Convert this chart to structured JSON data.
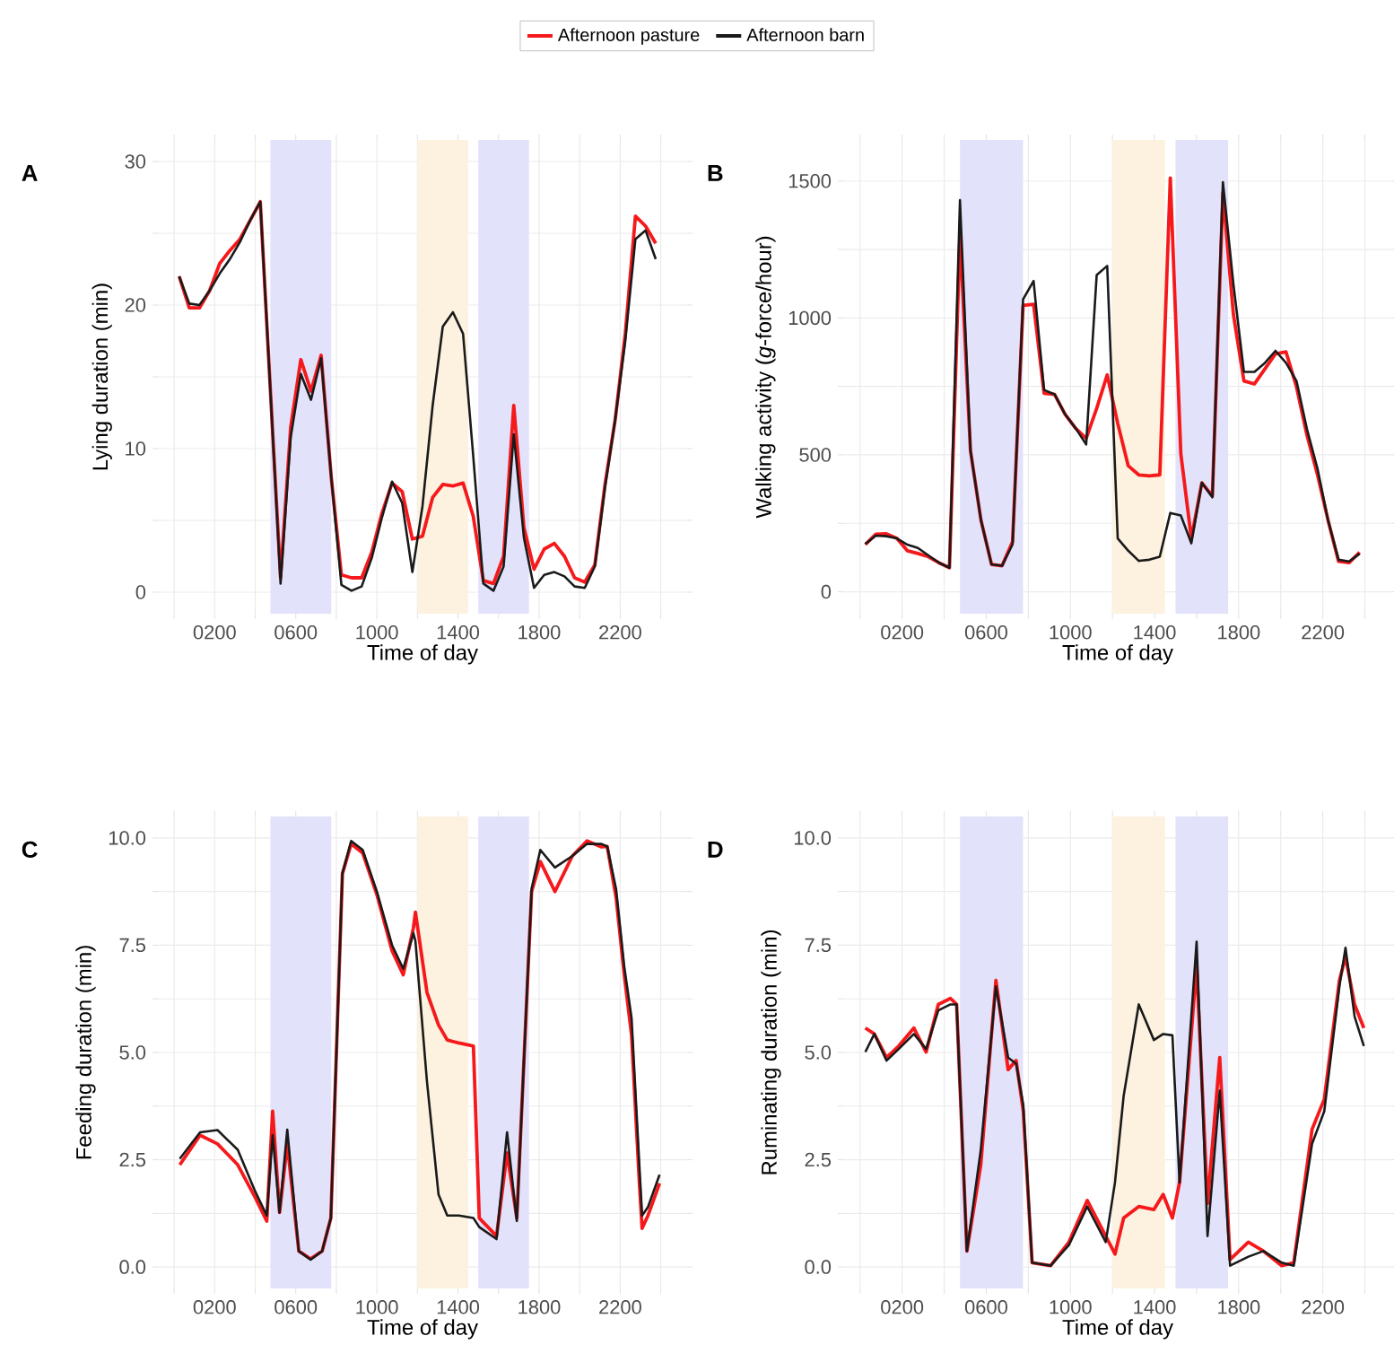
{
  "chart_data": [
    {
      "type": "line",
      "title": "A",
      "xlabel": "Time of day",
      "ylabel": "Lying duration (min)",
      "legend": "top",
      "grid": true,
      "x": [
        25,
        75,
        125,
        175,
        225,
        275,
        325,
        375,
        425,
        475,
        525,
        575,
        625,
        675,
        725,
        775,
        825,
        875,
        925,
        975,
        1025,
        1075,
        1125,
        1175,
        1225,
        1275,
        1325,
        1375,
        1425,
        1475,
        1525,
        1575,
        1625,
        1675,
        1725,
        1775,
        1825,
        1875,
        1925,
        1975,
        2025,
        2075,
        2125,
        2175,
        2225,
        2275,
        2325,
        2375
      ],
      "series": [
        {
          "name": "Afternoon pasture",
          "color": "#f5191c",
          "values": [
            22,
            19.8,
            19.8,
            21,
            22.9,
            23.8,
            24.6,
            25.9,
            27.2,
            14,
            1.0,
            11.5,
            16.2,
            14,
            16.5,
            8,
            1.2,
            1.0,
            1.0,
            2.8,
            5.5,
            7.6,
            7.0,
            3.7,
            3.9,
            6.6,
            7.5,
            7.4,
            7.6,
            5.3,
            0.8,
            0.6,
            2.5,
            13,
            4.5,
            1.6,
            3.0,
            3.4,
            2.5,
            1.0,
            0.7,
            1.9,
            7.5,
            12,
            18,
            26.2,
            25.5,
            24.3
          ]
        },
        {
          "name": "Afternoon barn",
          "color": "#1a1a1a",
          "values": [
            22,
            20.1,
            20,
            21,
            22.2,
            23.2,
            24.4,
            25.9,
            27.2,
            14,
            0.6,
            10.8,
            15.2,
            13.4,
            16.3,
            8,
            0.5,
            0.1,
            0.4,
            2.4,
            5.2,
            7.7,
            6.2,
            1.4,
            6.0,
            13,
            18.5,
            19.5,
            18,
            9.5,
            0.6,
            0.1,
            1.8,
            11,
            3.8,
            0.3,
            1.2,
            1.4,
            1.1,
            0.4,
            0.3,
            1.8,
            7.3,
            12,
            17.5,
            24.6,
            25.2,
            23.2
          ]
        }
      ],
      "xlim": [
        -80,
        2530
      ],
      "ylim": [
        -1.5,
        31.5
      ],
      "xticks": [
        {
          "value": 0,
          "label": null
        },
        {
          "value": 200,
          "label": "0200"
        },
        {
          "value": 400,
          "label": null
        },
        {
          "value": 600,
          "label": "0600"
        },
        {
          "value": 800,
          "label": null
        },
        1000,
        {
          "value": 1200,
          "label": null
        },
        1400,
        {
          "value": 1600,
          "label": null
        },
        1800,
        {
          "value": 2000,
          "label": null
        },
        2200,
        {
          "value": 2400,
          "label": null
        }
      ],
      "yticks": [
        0,
        {
          "value": 5,
          "label": null
        },
        10,
        {
          "value": 15,
          "label": null
        },
        20,
        {
          "value": 25,
          "label": null
        },
        30
      ],
      "bands": [
        {
          "axis": "x",
          "from": 475,
          "to": 775,
          "color": "#e2e2fb"
        },
        {
          "axis": "x",
          "from": 1200,
          "to": 1450,
          "color": "#fcf2df"
        },
        {
          "axis": "x",
          "from": 1500,
          "to": 1750,
          "color": "#e2e2fb"
        }
      ]
    },
    {
      "type": "line",
      "title": "B",
      "xlabel": "Time of day",
      "ylabel": "Walking activity (*g*-force/hour)",
      "grid": true,
      "x": [
        25,
        75,
        125,
        175,
        225,
        275,
        325,
        375,
        425,
        475,
        525,
        575,
        625,
        675,
        725,
        775,
        825,
        875,
        925,
        975,
        1025,
        1075,
        1125,
        1175,
        1225,
        1275,
        1325,
        1375,
        1425,
        1475,
        1525,
        1575,
        1625,
        1675,
        1725,
        1775,
        1825,
        1875,
        1925,
        1975,
        2025,
        2075,
        2125,
        2175,
        2225,
        2275,
        2325,
        2375
      ],
      "series": [
        {
          "color": "#f5191c",
          "values": [
            173,
            210,
            212,
            195,
            150,
            140,
            128,
            106,
            88,
            1300,
            515,
            261,
            100,
            95,
            183,
            1046,
            1050,
            725,
            721,
            648,
            597,
            560,
            670,
            792,
            615,
            460,
            427,
            423,
            427,
            1511,
            504,
            195,
            398,
            350,
            1456,
            1013,
            770,
            759,
            814,
            869,
            876,
            748,
            571,
            427,
            261,
            111,
            106,
            144
          ]
        },
        {
          "color": "#1a1a1a",
          "values": [
            175,
            205,
            203,
            195,
            172,
            160,
            133,
            106,
            88,
            1430,
            515,
            261,
            100,
            95,
            173,
            1068,
            1135,
            737,
            721,
            648,
            597,
            538,
            1157,
            1190,
            195,
            150,
            113,
            117,
            128,
            288,
            279,
            177,
            398,
            345,
            1496,
            1124,
            803,
            803,
            836,
            880,
            836,
            770,
            593,
            449,
            261,
            117,
            111,
            139
          ]
        }
      ],
      "xlim": [
        -80,
        2530
      ],
      "ylim": [
        -80,
        1650
      ],
      "xticks": [
        {
          "value": 0,
          "label": null
        },
        {
          "value": 200,
          "label": "0200"
        },
        {
          "value": 400,
          "label": null
        },
        {
          "value": 600,
          "label": "0600"
        },
        {
          "value": 800,
          "label": null
        },
        1000,
        {
          "value": 1200,
          "label": null
        },
        1400,
        {
          "value": 1600,
          "label": null
        },
        1800,
        {
          "value": 2000,
          "label": null
        },
        2200,
        {
          "value": 2400,
          "label": null
        }
      ],
      "yticks": [
        0,
        {
          "value": 250,
          "label": null
        },
        500,
        {
          "value": 750,
          "label": null
        },
        1000,
        {
          "value": 1250,
          "label": null
        },
        1500
      ],
      "bands": [
        {
          "axis": "x",
          "from": 475,
          "to": 775,
          "color": "#e2e2fb"
        },
        {
          "axis": "x",
          "from": 1200,
          "to": 1450,
          "color": "#fcf2df"
        },
        {
          "axis": "x",
          "from": 1500,
          "to": 1750,
          "color": "#e2e2fb"
        }
      ]
    },
    {
      "type": "line",
      "title": "C",
      "xlabel": "Time of day",
      "ylabel": "Feeding duration (min)",
      "grid": true,
      "x": [
        28,
        128,
        214,
        314,
        400,
        457,
        486,
        520,
        558,
        615,
        673,
        730,
        773,
        830,
        873,
        930,
        1000,
        1075,
        1130,
        1180,
        1190,
        1247,
        1304,
        1347,
        1404,
        1476,
        1505,
        1590,
        1642,
        1690,
        1763,
        1806,
        1878,
        1964,
        2036,
        2108,
        2136,
        2180,
        2220,
        2256,
        2294,
        2308,
        2337,
        2394
      ],
      "series": [
        {
          "color": "#f5191c",
          "values": [
            2.38,
            3.07,
            2.87,
            2.38,
            1.62,
            1.07,
            3.63,
            1.27,
            2.87,
            0.37,
            0.19,
            0.37,
            1.14,
            9.17,
            9.86,
            9.65,
            8.68,
            7.37,
            6.81,
            7.9,
            8.27,
            6.4,
            5.64,
            5.29,
            5.22,
            5.15,
            1.14,
            0.72,
            2.66,
            1.14,
            8.75,
            9.45,
            8.75,
            9.58,
            9.93,
            9.79,
            9.8,
            8.6,
            6.8,
            5.4,
            2.0,
            0.9,
            1.2,
            1.95
          ]
        },
        {
          "color": "#1a1a1a",
          "values": [
            2.52,
            3.14,
            3.19,
            2.73,
            1.76,
            1.2,
            3.07,
            1.27,
            3.2,
            0.37,
            0.17,
            0.37,
            1.14,
            9.17,
            9.93,
            9.72,
            8.75,
            7.5,
            6.95,
            7.78,
            7.6,
            4.32,
            1.69,
            1.2,
            1.2,
            1.14,
            0.93,
            0.65,
            3.14,
            1.07,
            8.82,
            9.72,
            9.31,
            9.58,
            9.86,
            9.86,
            9.8,
            8.8,
            7.0,
            5.8,
            2.4,
            1.2,
            1.4,
            2.15
          ]
        }
      ],
      "xlim": [
        -80,
        2530
      ],
      "ylim": [
        -0.5,
        10.5
      ],
      "xticks": [
        {
          "value": 0,
          "label": null
        },
        {
          "value": 200,
          "label": "0200"
        },
        {
          "value": 400,
          "label": null
        },
        {
          "value": 600,
          "label": "0600"
        },
        {
          "value": 800,
          "label": null
        },
        1000,
        {
          "value": 1200,
          "label": null
        },
        1400,
        {
          "value": 1600,
          "label": null
        },
        1800,
        {
          "value": 2000,
          "label": null
        },
        2200,
        {
          "value": 2400,
          "label": null
        }
      ],
      "yticks": [
        {
          "value": 0,
          "label": "0.0"
        },
        {
          "value": 1.25,
          "label": null
        },
        2.5,
        {
          "value": 3.75,
          "label": null
        },
        {
          "value": 5,
          "label": "5.0"
        },
        {
          "value": 6.25,
          "label": null
        },
        7.5,
        {
          "value": 8.75,
          "label": null
        },
        {
          "value": 10,
          "label": "10.0"
        }
      ],
      "bands": [
        {
          "axis": "x",
          "from": 475,
          "to": 775,
          "color": "#e2e2fb"
        },
        {
          "axis": "x",
          "from": 1200,
          "to": 1450,
          "color": "#fcf2df"
        },
        {
          "axis": "x",
          "from": 1500,
          "to": 1750,
          "color": "#e2e2fb"
        }
      ]
    },
    {
      "type": "line",
      "title": "D",
      "xlabel": "Time of day",
      "ylabel": "Ruminating duration (min)",
      "grid": true,
      "x": [
        25,
        68,
        126,
        184,
        256,
        314,
        372,
        430,
        459,
        508,
        574,
        646,
        704,
        742,
        776,
        818,
        906,
        993,
        1080,
        1168,
        1212,
        1253,
        1325,
        1397,
        1441,
        1485,
        1519,
        1600,
        1652,
        1710,
        1759,
        1846,
        1918,
        2005,
        2062,
        2149,
        2207,
        2279,
        2308,
        2351,
        2395
      ],
      "series": [
        {
          "color": "#f5191c",
          "values": [
            5.57,
            5.43,
            4.88,
            5.15,
            5.57,
            5.01,
            6.12,
            6.26,
            6.12,
            0.37,
            2.38,
            6.68,
            4.6,
            4.81,
            3.63,
            0.1,
            0.03,
            0.58,
            1.55,
            0.72,
            0.3,
            1.14,
            1.41,
            1.34,
            1.69,
            1.14,
            1.97,
            7.02,
            1.48,
            4.88,
            0.17,
            0.58,
            0.37,
            0.03,
            0.1,
            3.21,
            3.91,
            6.68,
            7.23,
            6.12,
            5.57
          ]
        },
        {
          "color": "#1a1a1a",
          "values": [
            5.01,
            5.43,
            4.81,
            5.08,
            5.43,
            5.08,
            5.98,
            6.12,
            6.12,
            0.37,
            2.73,
            6.54,
            4.88,
            4.74,
            3.77,
            0.1,
            0.03,
            0.51,
            1.41,
            0.58,
            1.97,
            3.98,
            6.12,
            5.29,
            5.43,
            5.4,
            1.97,
            7.58,
            0.72,
            4.11,
            0.03,
            0.24,
            0.37,
            0.1,
            0.03,
            2.87,
            3.63,
            6.54,
            7.44,
            5.84,
            5.15
          ]
        }
      ],
      "xlim": [
        -80,
        2530
      ],
      "ylim": [
        -0.5,
        10.5
      ],
      "xticks": [
        {
          "value": 0,
          "label": null
        },
        {
          "value": 200,
          "label": "0200"
        },
        {
          "value": 400,
          "label": null
        },
        {
          "value": 600,
          "label": "0600"
        },
        {
          "value": 800,
          "label": null
        },
        1000,
        {
          "value": 1200,
          "label": null
        },
        1400,
        {
          "value": 1600,
          "label": null
        },
        1800,
        {
          "value": 2000,
          "label": null
        },
        2200,
        {
          "value": 2400,
          "label": null
        }
      ],
      "yticks": [
        {
          "value": 0,
          "label": "0.0"
        },
        {
          "value": 1.25,
          "label": null
        },
        2.5,
        {
          "value": 3.75,
          "label": null
        },
        {
          "value": 5,
          "label": "5.0"
        },
        {
          "value": 6.25,
          "label": null
        },
        7.5,
        {
          "value": 8.75,
          "label": null
        },
        {
          "value": 10,
          "label": "10.0"
        }
      ],
      "bands": [
        {
          "axis": "x",
          "from": 475,
          "to": 775,
          "color": "#e2e2fb"
        },
        {
          "axis": "x",
          "from": 1200,
          "to": 1450,
          "color": "#fcf2df"
        },
        {
          "axis": "x",
          "from": 1500,
          "to": 1750,
          "color": "#e2e2fb"
        }
      ]
    }
  ]
}
